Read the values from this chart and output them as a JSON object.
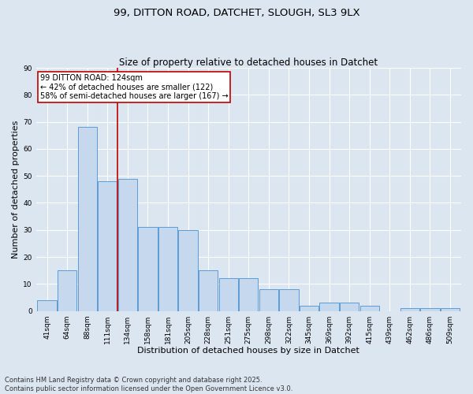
{
  "title_line1": "99, DITTON ROAD, DATCHET, SLOUGH, SL3 9LX",
  "title_line2": "Size of property relative to detached houses in Datchet",
  "xlabel": "Distribution of detached houses by size in Datchet",
  "ylabel": "Number of detached properties",
  "categories": [
    "41sqm",
    "64sqm",
    "88sqm",
    "111sqm",
    "134sqm",
    "158sqm",
    "181sqm",
    "205sqm",
    "228sqm",
    "251sqm",
    "275sqm",
    "298sqm",
    "322sqm",
    "345sqm",
    "369sqm",
    "392sqm",
    "415sqm",
    "439sqm",
    "462sqm",
    "486sqm",
    "509sqm"
  ],
  "values": [
    4,
    15,
    68,
    48,
    49,
    31,
    31,
    30,
    15,
    12,
    12,
    8,
    8,
    2,
    3,
    3,
    2,
    0,
    1,
    1,
    1
  ],
  "bar_color": "#c5d8ed",
  "bar_edge_color": "#5b9bd5",
  "background_color": "#dce6f1",
  "grid_color": "#ffffff",
  "vline_x": 3.5,
  "vline_color": "#c00000",
  "annotation_line1": "99 DITTON ROAD: 124sqm",
  "annotation_line2": "← 42% of detached houses are smaller (122)",
  "annotation_line3": "58% of semi-detached houses are larger (167) →",
  "annotation_box_color": "#c00000",
  "ylim": [
    0,
    90
  ],
  "yticks": [
    0,
    10,
    20,
    30,
    40,
    50,
    60,
    70,
    80,
    90
  ],
  "footer": "Contains HM Land Registry data © Crown copyright and database right 2025.\nContains public sector information licensed under the Open Government Licence v3.0.",
  "title_fontsize": 9.5,
  "subtitle_fontsize": 8.5,
  "annotation_fontsize": 7,
  "label_fontsize": 8,
  "tick_fontsize": 6.5,
  "footer_fontsize": 6
}
